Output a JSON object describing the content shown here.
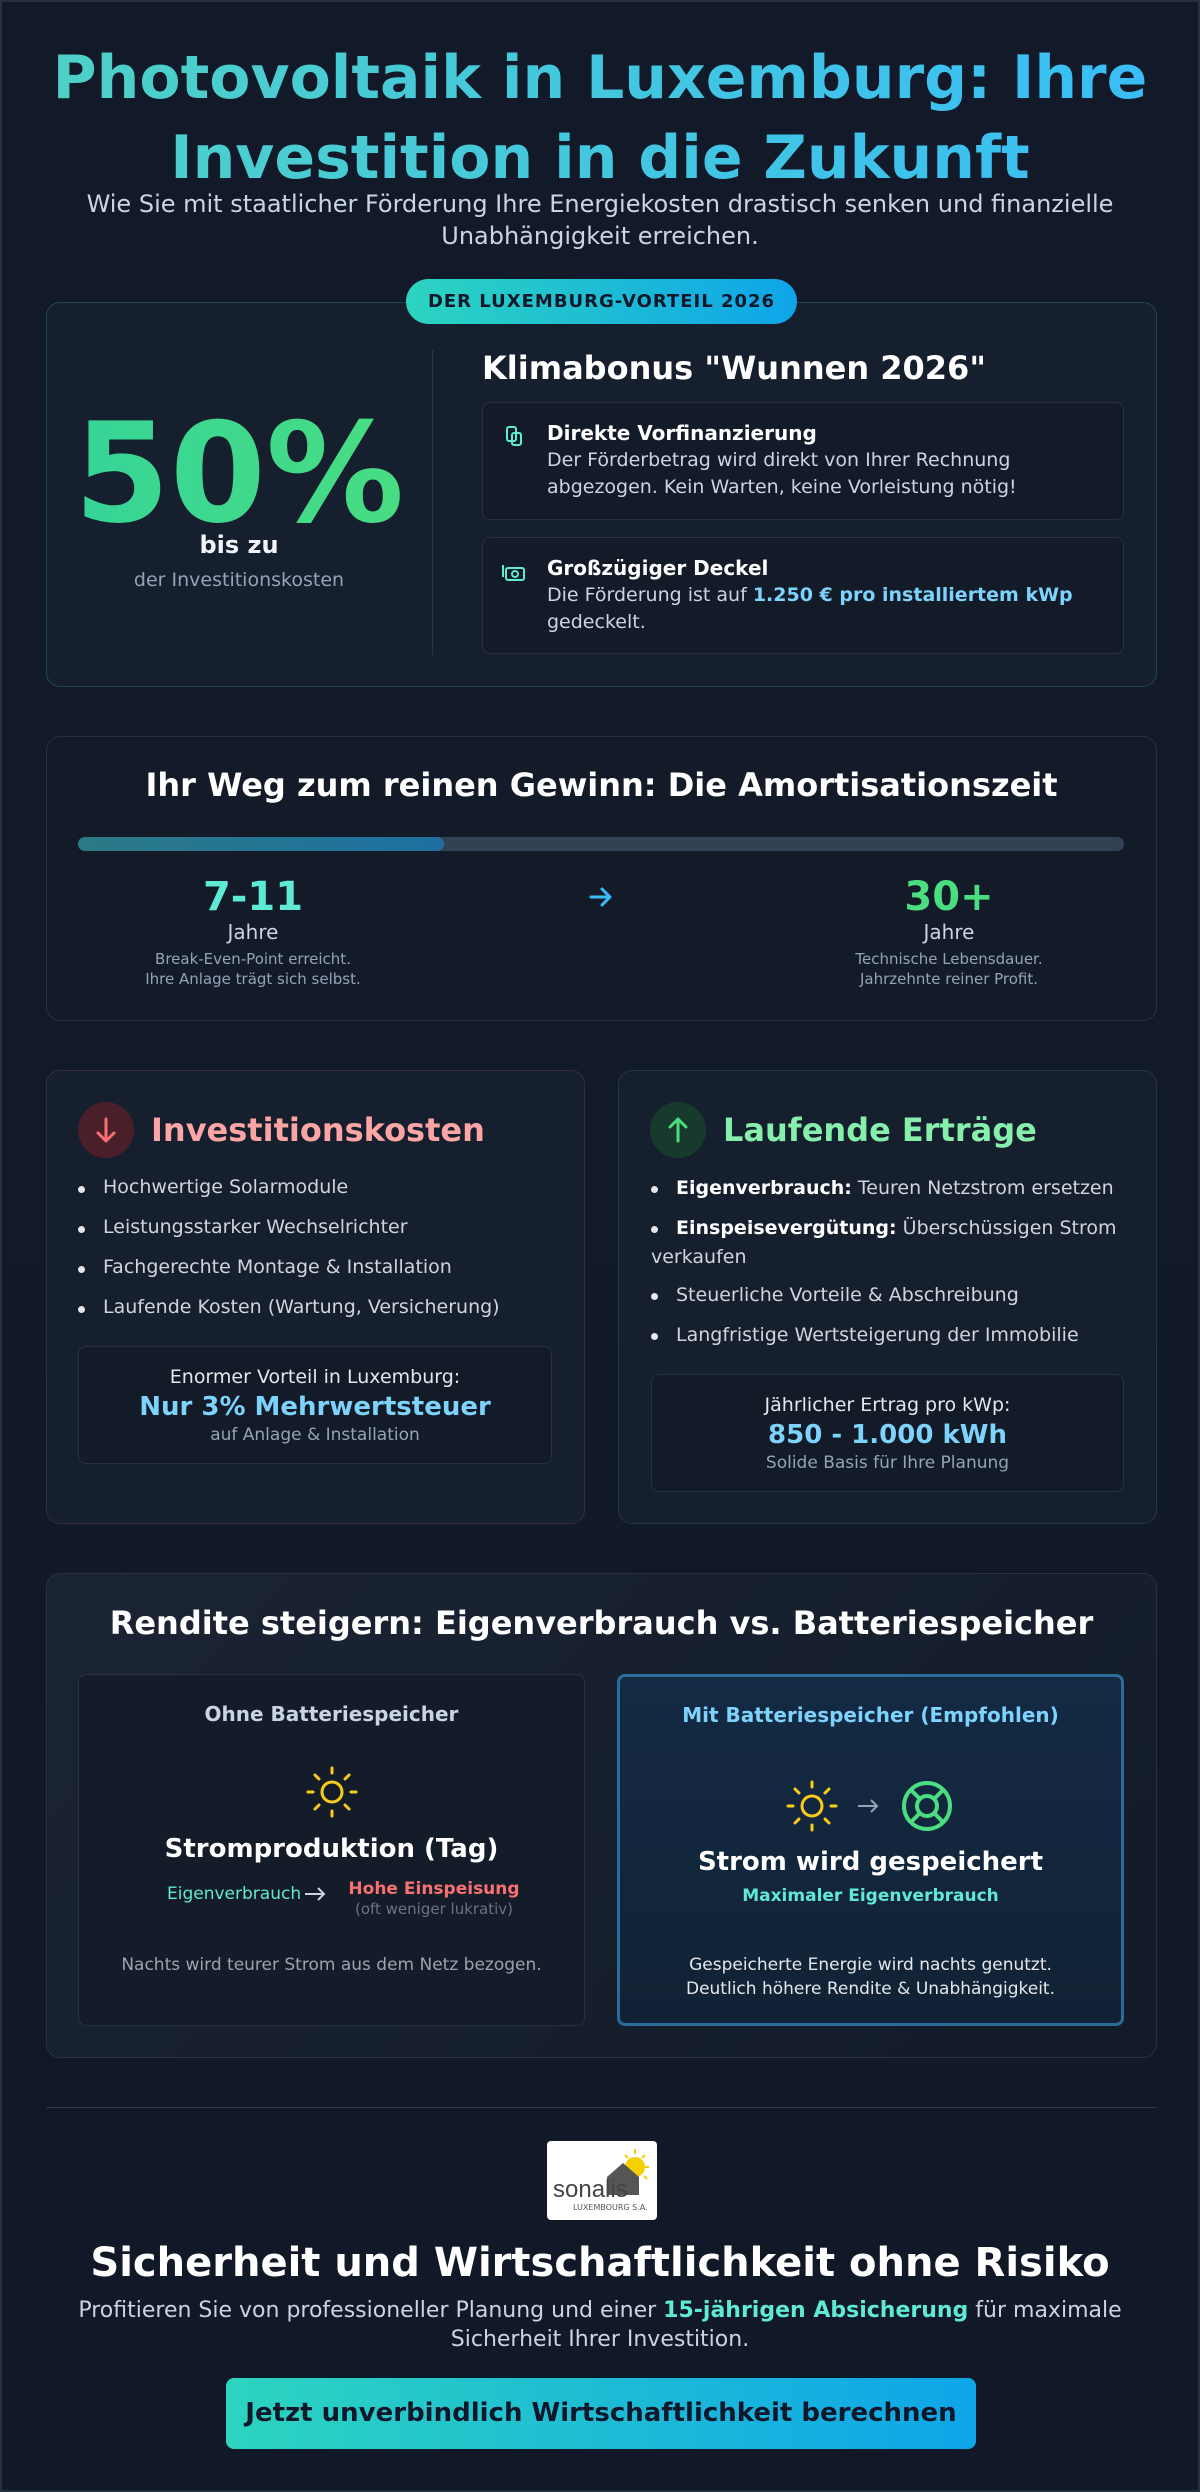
{
  "header": {
    "title_line1": "Photovoltaik in Luxemburg: Ihre",
    "title_line2": "Investition in die Zukunft",
    "subtitle": "Wie Sie mit staatlicher Förderung Ihre Energiekosten drastisch senken und finanzielle Unabhängigkeit erreichen."
  },
  "advantage": {
    "badge": "DER LUXEMBURG-VORTEIL 2026",
    "big_number": "50%",
    "prefix": "bis zu",
    "caption": "der Investitionskosten",
    "heading": "Klimabonus \"Wunnen 2026\"",
    "items": [
      {
        "title": "Direkte Vorfinanzierung",
        "text": "Der Förderbetrag wird direkt von Ihrer Rechnung abgezogen. Kein Warten, keine Vorleistung nötig!"
      },
      {
        "title": "Großzügiger Deckel",
        "text_before": "Die Förderung ist auf",
        "highlight": "1.250 € pro installiertem kWp",
        "text_after": "gedeckelt."
      }
    ]
  },
  "amortization": {
    "title": "Ihr Weg zum reinen Gewinn: Die Amortisationszeit",
    "milestones": [
      {
        "value": "7-11",
        "unit": "Jahre",
        "notes": [
          "Break-Even-Point erreicht.",
          "Ihre Anlage trägt sich selbst."
        ]
      },
      {
        "value": "30+",
        "unit": "Jahre",
        "notes": [
          "Technische Lebensdauer.",
          "Jahrzehnte reiner Profit."
        ]
      }
    ]
  },
  "costs": {
    "title": "Investitionskosten",
    "items": [
      "Hochwertige Solarmodule",
      "Leistungsstarker Wechselrichter",
      "Fachgerechte Montage & Installation",
      "Laufende Kosten (Wartung, Versicherung)"
    ],
    "box": {
      "label": "Enormer Vorteil in Luxemburg:",
      "highlight": "Nur 3% Mehrwertsteuer",
      "caption": "auf Anlage & Installation"
    }
  },
  "returns": {
    "title": "Laufende Erträge",
    "items": [
      {
        "bold": "Eigenverbrauch:",
        "text": "Teuren Netzstrom ersetzen"
      },
      {
        "bold": "Einspeisevergütung:",
        "text": "Überschüssigen Strom verkaufen"
      },
      {
        "text": "Steuerliche Vorteile & Abschreibung"
      },
      {
        "text": "Langfristige Wertsteigerung der Immobilie"
      }
    ],
    "box": {
      "label": "Jährlicher Ertrag pro kWp:",
      "highlight": "850 - 1.000 kWh",
      "caption": "Solide Basis für Ihre Planung"
    }
  },
  "comparison": {
    "title": "Rendite steigern: Eigenverbrauch vs. Batteriespeicher",
    "options": [
      {
        "title": "Ohne Batteriespeicher",
        "heading": "Stromproduktion (Tag)",
        "from": "Eigenverbrauch",
        "to": "Hohe Einspeisung",
        "to_note": "(oft weniger lukrativ)",
        "note": "Nachts wird teurer Strom aus dem Netz bezogen."
      },
      {
        "title": "Mit Batteriespeicher (Empfohlen)",
        "heading": "Strom wird gespeichert",
        "subheading": "Maximaler Eigenverbrauch",
        "note": "Gespeicherte Energie wird nachts genutzt. Deutlich höhere Rendite & Unabhängigkeit."
      }
    ]
  },
  "footer": {
    "logo": {
      "name": "sonalis",
      "sub": "LUXEMBOURG S.A."
    },
    "title": "Sicherheit und Wirtschaftlichkeit ohne Risiko",
    "text_before": "Profitieren Sie von professioneller Planung und einer",
    "highlight": "15-jährigen Absicherung",
    "text_after": "für maximale Sicherheit Ihrer Investition.",
    "button": "Jetzt unverbindlich Wirtschaftlichkeit berechnen"
  }
}
